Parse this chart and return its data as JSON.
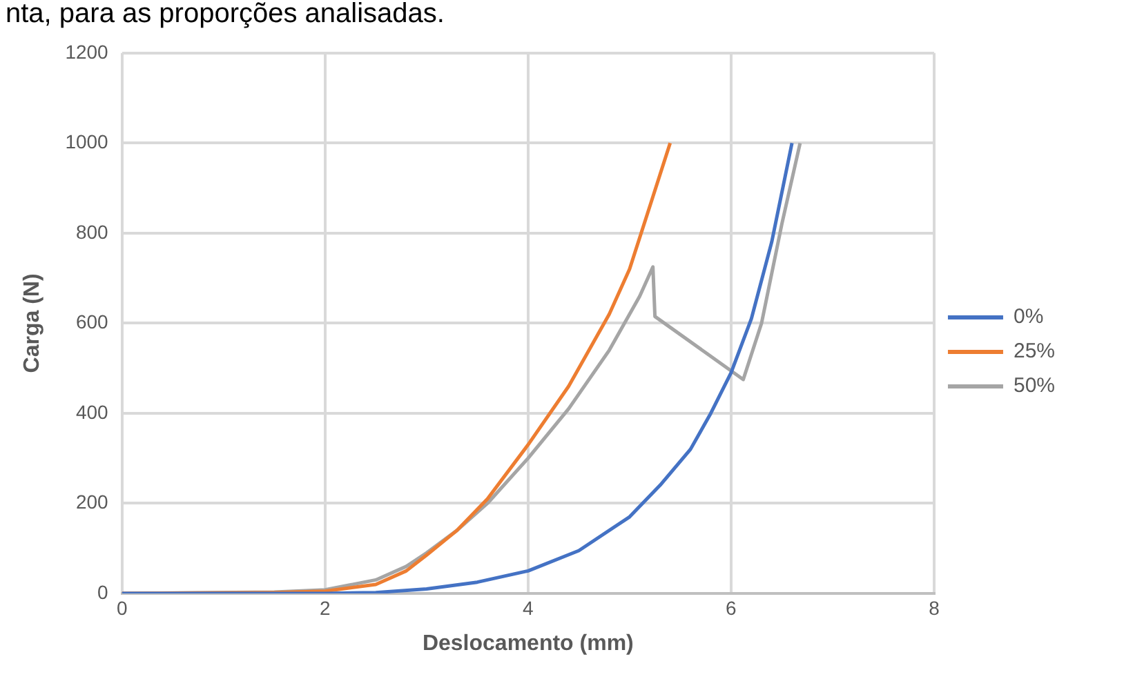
{
  "chart_data": {
    "type": "line",
    "xlabel": "Deslocamento (mm)",
    "ylabel": "Carga (N)",
    "annotations": [
      "nta, para as proporções analisadas."
    ],
    "xlim": [
      0,
      8
    ],
    "xticks": [
      0,
      2,
      4,
      6,
      8
    ],
    "ylim": [
      0,
      1200
    ],
    "yticks": [
      0,
      200,
      400,
      600,
      800,
      1000,
      1200
    ],
    "grid": true,
    "legend": "right",
    "marker": "none",
    "line_style": "solid",
    "series": [
      {
        "name": "0%",
        "color": "#4472c4",
        "x": [
          0,
          2,
          2.5,
          3,
          3.5,
          4,
          4.5,
          5,
          5.3,
          5.6,
          5.8,
          6,
          6.2,
          6.4,
          6.6
        ],
        "values": [
          0,
          0,
          2,
          10,
          25,
          50,
          95,
          170,
          240,
          320,
          400,
          490,
          610,
          780,
          1000
        ]
      },
      {
        "name": "25%",
        "color": "#ed7d31",
        "x": [
          0,
          1.5,
          2,
          2.5,
          2.8,
          3,
          3.3,
          3.6,
          4,
          4.4,
          4.8,
          5,
          5.2,
          5.4
        ],
        "values": [
          0,
          2,
          5,
          20,
          50,
          85,
          140,
          210,
          330,
          460,
          620,
          720,
          860,
          1000
        ]
      },
      {
        "name": "50%",
        "color": "#a5a5a5",
        "x": [
          0,
          1.5,
          2,
          2.5,
          2.8,
          3,
          3.3,
          3.6,
          4,
          4.4,
          4.8,
          5.1,
          5.23,
          5.25,
          6.12,
          6.3,
          6.5,
          6.68
        ],
        "values": [
          0,
          3,
          8,
          30,
          60,
          90,
          140,
          200,
          300,
          410,
          540,
          660,
          725,
          615,
          475,
          600,
          820,
          1000
        ]
      }
    ]
  }
}
